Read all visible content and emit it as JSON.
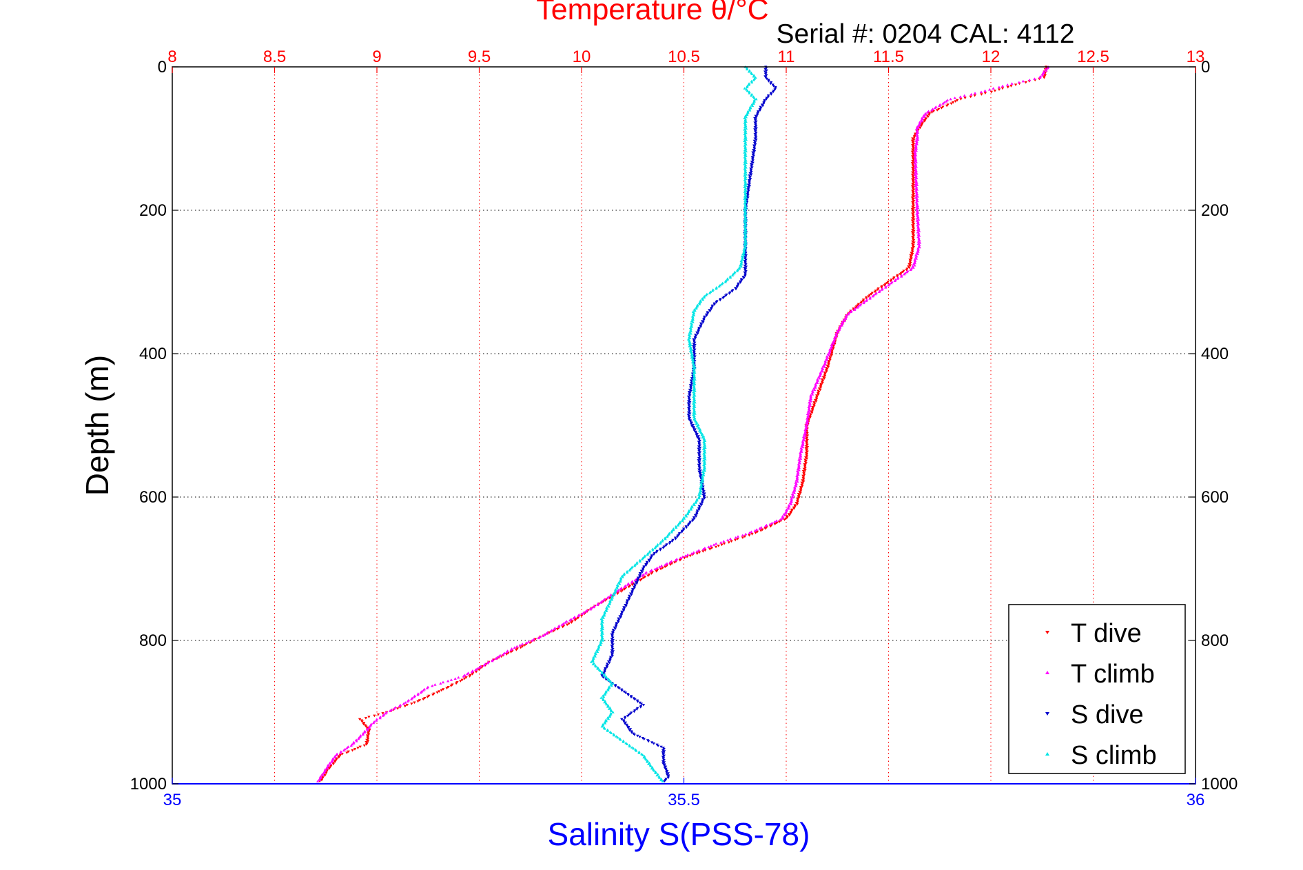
{
  "chart_data": {
    "type": "scatter",
    "title": "Temperature θ/°C",
    "subtitle": "Serial #: 0204  CAL: 4112",
    "xlabel_bottom": "Salinity S(PSS-78)",
    "ylabel": "Depth (m)",
    "y_axis": {
      "range": [
        0,
        1000
      ],
      "reversed": true,
      "ticks": [
        "0",
        "200",
        "400",
        "600",
        "800",
        "1000"
      ]
    },
    "x_top": {
      "quantity": "temperature",
      "range": [
        8,
        13
      ],
      "ticks": [
        "8",
        "8.5",
        "9",
        "9.5",
        "10",
        "10.5",
        "11",
        "11.5",
        "12",
        "12.5",
        "13"
      ],
      "color": "#ff0000"
    },
    "x_bottom": {
      "quantity": "salinity",
      "range": [
        35,
        36
      ],
      "ticks": [
        "35",
        "35.5",
        "36"
      ],
      "color": "#0000ff"
    },
    "grid": true,
    "legend_position": "bottom-right",
    "series": [
      {
        "name": "T dive",
        "axis": "top",
        "color": "#ff0000",
        "marker": "triangle-down",
        "points": [
          [
            12.27,
            0
          ],
          [
            12.26,
            15
          ],
          [
            12.12,
            25
          ],
          [
            12.0,
            35
          ],
          [
            11.85,
            45
          ],
          [
            11.7,
            65
          ],
          [
            11.65,
            85
          ],
          [
            11.62,
            100
          ],
          [
            11.62,
            120
          ],
          [
            11.62,
            200
          ],
          [
            11.62,
            250
          ],
          [
            11.6,
            280
          ],
          [
            11.5,
            300
          ],
          [
            11.4,
            320
          ],
          [
            11.3,
            345
          ],
          [
            11.25,
            370
          ],
          [
            11.2,
            420
          ],
          [
            11.15,
            460
          ],
          [
            11.1,
            500
          ],
          [
            11.1,
            540
          ],
          [
            11.08,
            580
          ],
          [
            11.05,
            610
          ],
          [
            11.0,
            630
          ],
          [
            10.85,
            650
          ],
          [
            10.7,
            665
          ],
          [
            10.5,
            685
          ],
          [
            10.35,
            705
          ],
          [
            10.2,
            730
          ],
          [
            10.05,
            755
          ],
          [
            9.95,
            775
          ],
          [
            9.8,
            795
          ],
          [
            9.7,
            810
          ],
          [
            9.55,
            830
          ],
          [
            9.45,
            850
          ],
          [
            9.35,
            865
          ],
          [
            9.2,
            885
          ],
          [
            9.05,
            900
          ],
          [
            8.92,
            910
          ],
          [
            8.96,
            925
          ],
          [
            8.95,
            945
          ],
          [
            8.82,
            960
          ],
          [
            8.76,
            980
          ],
          [
            8.72,
            998
          ]
        ]
      },
      {
        "name": "T climb",
        "axis": "top",
        "color": "#ff00ff",
        "marker": "triangle-up",
        "points": [
          [
            12.28,
            0
          ],
          [
            12.24,
            15
          ],
          [
            12.08,
            25
          ],
          [
            11.95,
            35
          ],
          [
            11.8,
            45
          ],
          [
            11.68,
            65
          ],
          [
            11.64,
            85
          ],
          [
            11.64,
            100
          ],
          [
            11.63,
            120
          ],
          [
            11.64,
            200
          ],
          [
            11.65,
            250
          ],
          [
            11.62,
            280
          ],
          [
            11.52,
            300
          ],
          [
            11.42,
            320
          ],
          [
            11.3,
            345
          ],
          [
            11.25,
            370
          ],
          [
            11.18,
            420
          ],
          [
            11.12,
            460
          ],
          [
            11.1,
            500
          ],
          [
            11.07,
            540
          ],
          [
            11.05,
            580
          ],
          [
            11.02,
            610
          ],
          [
            10.98,
            630
          ],
          [
            10.82,
            650
          ],
          [
            10.66,
            665
          ],
          [
            10.48,
            685
          ],
          [
            10.32,
            705
          ],
          [
            10.18,
            730
          ],
          [
            10.05,
            755
          ],
          [
            9.92,
            775
          ],
          [
            9.8,
            795
          ],
          [
            9.67,
            810
          ],
          [
            9.55,
            830
          ],
          [
            9.42,
            850
          ],
          [
            9.25,
            865
          ],
          [
            9.15,
            885
          ],
          [
            9.05,
            900
          ],
          [
            8.98,
            915
          ],
          [
            8.95,
            925
          ],
          [
            8.88,
            945
          ],
          [
            8.8,
            960
          ],
          [
            8.75,
            980
          ],
          [
            8.71,
            998
          ]
        ]
      },
      {
        "name": "S dive",
        "axis": "bottom",
        "color": "#0000cc",
        "marker": "triangle-down",
        "points": [
          [
            35.58,
            0
          ],
          [
            35.58,
            15
          ],
          [
            35.59,
            30
          ],
          [
            35.58,
            45
          ],
          [
            35.57,
            70
          ],
          [
            35.57,
            100
          ],
          [
            35.565,
            150
          ],
          [
            35.56,
            200
          ],
          [
            35.56,
            250
          ],
          [
            35.56,
            290
          ],
          [
            35.55,
            310
          ],
          [
            35.53,
            330
          ],
          [
            35.52,
            350
          ],
          [
            35.51,
            380
          ],
          [
            35.51,
            420
          ],
          [
            35.505,
            460
          ],
          [
            35.505,
            490
          ],
          [
            35.515,
            520
          ],
          [
            35.515,
            560
          ],
          [
            35.52,
            600
          ],
          [
            35.51,
            630
          ],
          [
            35.49,
            660
          ],
          [
            35.47,
            680
          ],
          [
            35.46,
            700
          ],
          [
            35.45,
            730
          ],
          [
            35.44,
            760
          ],
          [
            35.43,
            790
          ],
          [
            35.43,
            820
          ],
          [
            35.42,
            850
          ],
          [
            35.44,
            870
          ],
          [
            35.46,
            890
          ],
          [
            35.44,
            910
          ],
          [
            35.45,
            930
          ],
          [
            35.48,
            950
          ],
          [
            35.48,
            970
          ],
          [
            35.485,
            990
          ],
          [
            35.48,
            998
          ]
        ]
      },
      {
        "name": "S climb",
        "axis": "bottom",
        "color": "#00e5e5",
        "marker": "triangle-up",
        "points": [
          [
            35.56,
            0
          ],
          [
            35.57,
            15
          ],
          [
            35.56,
            30
          ],
          [
            35.57,
            45
          ],
          [
            35.56,
            70
          ],
          [
            35.56,
            100
          ],
          [
            35.56,
            150
          ],
          [
            35.56,
            200
          ],
          [
            35.56,
            250
          ],
          [
            35.555,
            280
          ],
          [
            35.54,
            300
          ],
          [
            35.52,
            320
          ],
          [
            35.51,
            340
          ],
          [
            35.505,
            380
          ],
          [
            35.51,
            420
          ],
          [
            35.51,
            460
          ],
          [
            35.51,
            490
          ],
          [
            35.52,
            520
          ],
          [
            35.52,
            560
          ],
          [
            35.515,
            600
          ],
          [
            35.5,
            630
          ],
          [
            35.48,
            660
          ],
          [
            35.46,
            685
          ],
          [
            35.44,
            710
          ],
          [
            35.43,
            740
          ],
          [
            35.42,
            770
          ],
          [
            35.42,
            800
          ],
          [
            35.41,
            830
          ],
          [
            35.43,
            860
          ],
          [
            35.42,
            880
          ],
          [
            35.43,
            900
          ],
          [
            35.42,
            920
          ],
          [
            35.44,
            940
          ],
          [
            35.46,
            960
          ],
          [
            35.47,
            980
          ],
          [
            35.48,
            998
          ]
        ]
      }
    ]
  }
}
